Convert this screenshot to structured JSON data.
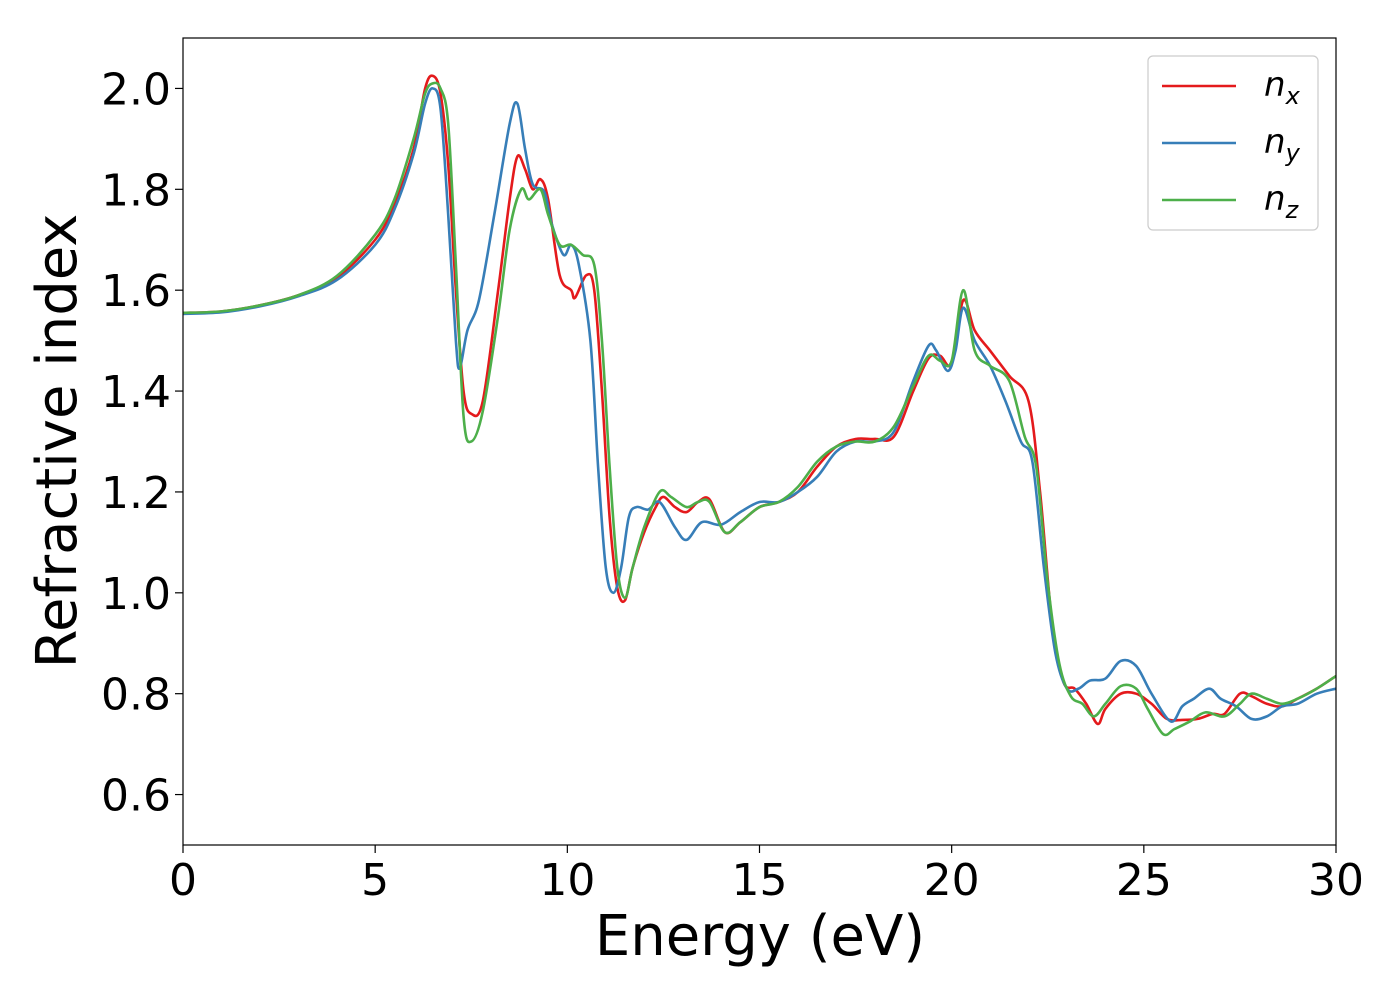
{
  "chart_data": {
    "type": "line",
    "xlabel": "Energy (eV)",
    "ylabel": "Refractive index",
    "xlim": [
      0,
      30
    ],
    "ylim": [
      0.5,
      2.1
    ],
    "xticks": [
      0,
      5,
      10,
      15,
      20,
      25,
      30
    ],
    "yticks": [
      0.6,
      0.8,
      1.0,
      1.2,
      1.4,
      1.6,
      1.8,
      2.0
    ],
    "xtick_labels": [
      "0",
      "5",
      "10",
      "15",
      "20",
      "25",
      "30"
    ],
    "ytick_labels": [
      "0.6",
      "0.8",
      "1.0",
      "1.2",
      "1.4",
      "1.6",
      "1.8",
      "2.0"
    ],
    "grid": false,
    "legend_position": "top-right",
    "series": [
      {
        "name": "n_x",
        "label_base": "n",
        "label_sub": "x",
        "color": "#e41a1c",
        "points": [
          [
            0,
            1.555
          ],
          [
            1,
            1.558
          ],
          [
            2,
            1.57
          ],
          [
            3,
            1.59
          ],
          [
            4,
            1.625
          ],
          [
            5,
            1.7
          ],
          [
            5.5,
            1.77
          ],
          [
            6,
            1.88
          ],
          [
            6.3,
            2.0
          ],
          [
            6.5,
            2.025
          ],
          [
            6.7,
            1.99
          ],
          [
            6.9,
            1.85
          ],
          [
            7.1,
            1.6
          ],
          [
            7.3,
            1.4
          ],
          [
            7.5,
            1.355
          ],
          [
            7.8,
            1.38
          ],
          [
            8.2,
            1.6
          ],
          [
            8.5,
            1.78
          ],
          [
            8.7,
            1.865
          ],
          [
            8.9,
            1.84
          ],
          [
            9.1,
            1.8
          ],
          [
            9.3,
            1.82
          ],
          [
            9.5,
            1.78
          ],
          [
            9.8,
            1.63
          ],
          [
            10.1,
            1.6
          ],
          [
            10.2,
            1.585
          ],
          [
            10.5,
            1.63
          ],
          [
            10.7,
            1.6
          ],
          [
            10.9,
            1.4
          ],
          [
            11.1,
            1.15
          ],
          [
            11.3,
            1.01
          ],
          [
            11.5,
            0.985
          ],
          [
            11.7,
            1.05
          ],
          [
            12,
            1.12
          ],
          [
            12.3,
            1.17
          ],
          [
            12.5,
            1.19
          ],
          [
            12.8,
            1.17
          ],
          [
            13.1,
            1.16
          ],
          [
            13.4,
            1.18
          ],
          [
            13.7,
            1.185
          ],
          [
            14.1,
            1.12
          ],
          [
            14.5,
            1.14
          ],
          [
            15,
            1.17
          ],
          [
            15.5,
            1.18
          ],
          [
            16,
            1.2
          ],
          [
            16.5,
            1.25
          ],
          [
            17,
            1.29
          ],
          [
            17.5,
            1.305
          ],
          [
            18,
            1.305
          ],
          [
            18.5,
            1.31
          ],
          [
            19,
            1.4
          ],
          [
            19.4,
            1.465
          ],
          [
            19.7,
            1.47
          ],
          [
            20,
            1.455
          ],
          [
            20.3,
            1.58
          ],
          [
            20.6,
            1.52
          ],
          [
            21,
            1.48
          ],
          [
            21.5,
            1.43
          ],
          [
            22,
            1.38
          ],
          [
            22.3,
            1.2
          ],
          [
            22.6,
            0.95
          ],
          [
            22.9,
            0.825
          ],
          [
            23.2,
            0.81
          ],
          [
            23.5,
            0.78
          ],
          [
            23.8,
            0.74
          ],
          [
            24,
            0.77
          ],
          [
            24.4,
            0.8
          ],
          [
            24.8,
            0.8
          ],
          [
            25.2,
            0.78
          ],
          [
            25.6,
            0.75
          ],
          [
            26,
            0.748
          ],
          [
            26.4,
            0.75
          ],
          [
            26.8,
            0.76
          ],
          [
            27.1,
            0.76
          ],
          [
            27.5,
            0.8
          ],
          [
            27.8,
            0.795
          ],
          [
            28.2,
            0.78
          ],
          [
            28.6,
            0.775
          ],
          [
            29,
            0.79
          ],
          [
            29.5,
            0.81
          ],
          [
            30,
            0.835
          ]
        ]
      },
      {
        "name": "n_y",
        "label_base": "n",
        "label_sub": "y",
        "color": "#377eb8",
        "points": [
          [
            0,
            1.553
          ],
          [
            1,
            1.556
          ],
          [
            2,
            1.568
          ],
          [
            3,
            1.588
          ],
          [
            4,
            1.62
          ],
          [
            5,
            1.69
          ],
          [
            5.5,
            1.76
          ],
          [
            6,
            1.87
          ],
          [
            6.3,
            1.97
          ],
          [
            6.5,
            2.0
          ],
          [
            6.7,
            1.96
          ],
          [
            6.9,
            1.75
          ],
          [
            7.1,
            1.5
          ],
          [
            7.2,
            1.445
          ],
          [
            7.4,
            1.52
          ],
          [
            7.7,
            1.58
          ],
          [
            8.1,
            1.75
          ],
          [
            8.5,
            1.93
          ],
          [
            8.7,
            1.97
          ],
          [
            8.9,
            1.88
          ],
          [
            9.1,
            1.81
          ],
          [
            9.4,
            1.795
          ],
          [
            9.6,
            1.73
          ],
          [
            9.9,
            1.67
          ],
          [
            10.1,
            1.69
          ],
          [
            10.3,
            1.65
          ],
          [
            10.6,
            1.5
          ],
          [
            10.8,
            1.25
          ],
          [
            11,
            1.05
          ],
          [
            11.2,
            1.0
          ],
          [
            11.4,
            1.05
          ],
          [
            11.6,
            1.15
          ],
          [
            11.8,
            1.17
          ],
          [
            12.1,
            1.165
          ],
          [
            12.4,
            1.18
          ],
          [
            12.8,
            1.13
          ],
          [
            13.1,
            1.105
          ],
          [
            13.5,
            1.14
          ],
          [
            14,
            1.135
          ],
          [
            14.5,
            1.16
          ],
          [
            15,
            1.18
          ],
          [
            15.5,
            1.18
          ],
          [
            16,
            1.2
          ],
          [
            16.5,
            1.23
          ],
          [
            17,
            1.28
          ],
          [
            17.5,
            1.3
          ],
          [
            18,
            1.3
          ],
          [
            18.5,
            1.32
          ],
          [
            19,
            1.42
          ],
          [
            19.4,
            1.49
          ],
          [
            19.6,
            1.48
          ],
          [
            19.9,
            1.44
          ],
          [
            20.1,
            1.48
          ],
          [
            20.3,
            1.565
          ],
          [
            20.6,
            1.5
          ],
          [
            21,
            1.45
          ],
          [
            21.4,
            1.38
          ],
          [
            21.8,
            1.3
          ],
          [
            22.1,
            1.26
          ],
          [
            22.4,
            1.05
          ],
          [
            22.7,
            0.88
          ],
          [
            23,
            0.81
          ],
          [
            23.3,
            0.81
          ],
          [
            23.6,
            0.826
          ],
          [
            24,
            0.83
          ],
          [
            24.4,
            0.865
          ],
          [
            24.8,
            0.855
          ],
          [
            25.2,
            0.8
          ],
          [
            25.7,
            0.745
          ],
          [
            26,
            0.775
          ],
          [
            26.3,
            0.79
          ],
          [
            26.7,
            0.81
          ],
          [
            27,
            0.79
          ],
          [
            27.4,
            0.775
          ],
          [
            27.8,
            0.75
          ],
          [
            28.2,
            0.755
          ],
          [
            28.6,
            0.775
          ],
          [
            29,
            0.78
          ],
          [
            29.5,
            0.8
          ],
          [
            30,
            0.81
          ]
        ]
      },
      {
        "name": "n_z",
        "label_base": "n",
        "label_sub": "z",
        "color": "#4daf4a",
        "points": [
          [
            0,
            1.555
          ],
          [
            1,
            1.558
          ],
          [
            2,
            1.57
          ],
          [
            3,
            1.59
          ],
          [
            4,
            1.628
          ],
          [
            5,
            1.71
          ],
          [
            5.5,
            1.78
          ],
          [
            6,
            1.9
          ],
          [
            6.3,
            1.99
          ],
          [
            6.5,
            2.01
          ],
          [
            6.7,
            2.0
          ],
          [
            6.9,
            1.93
          ],
          [
            7.1,
            1.65
          ],
          [
            7.3,
            1.35
          ],
          [
            7.5,
            1.3
          ],
          [
            7.8,
            1.36
          ],
          [
            8.2,
            1.55
          ],
          [
            8.5,
            1.72
          ],
          [
            8.8,
            1.8
          ],
          [
            9,
            1.78
          ],
          [
            9.3,
            1.8
          ],
          [
            9.5,
            1.75
          ],
          [
            9.8,
            1.69
          ],
          [
            10.1,
            1.69
          ],
          [
            10.4,
            1.67
          ],
          [
            10.7,
            1.65
          ],
          [
            10.9,
            1.5
          ],
          [
            11.1,
            1.25
          ],
          [
            11.3,
            1.05
          ],
          [
            11.5,
            0.99
          ],
          [
            11.7,
            1.05
          ],
          [
            12,
            1.13
          ],
          [
            12.4,
            1.2
          ],
          [
            12.7,
            1.19
          ],
          [
            13.1,
            1.17
          ],
          [
            13.4,
            1.18
          ],
          [
            13.7,
            1.18
          ],
          [
            14.1,
            1.12
          ],
          [
            14.5,
            1.14
          ],
          [
            15,
            1.17
          ],
          [
            15.5,
            1.18
          ],
          [
            16,
            1.21
          ],
          [
            16.5,
            1.26
          ],
          [
            17,
            1.29
          ],
          [
            17.5,
            1.3
          ],
          [
            18,
            1.3
          ],
          [
            18.5,
            1.33
          ],
          [
            19,
            1.41
          ],
          [
            19.4,
            1.47
          ],
          [
            19.7,
            1.46
          ],
          [
            20,
            1.46
          ],
          [
            20.3,
            1.6
          ],
          [
            20.6,
            1.48
          ],
          [
            21,
            1.45
          ],
          [
            21.5,
            1.42
          ],
          [
            21.9,
            1.31
          ],
          [
            22.2,
            1.25
          ],
          [
            22.5,
            1.02
          ],
          [
            22.8,
            0.86
          ],
          [
            23.1,
            0.795
          ],
          [
            23.4,
            0.78
          ],
          [
            23.7,
            0.755
          ],
          [
            24,
            0.78
          ],
          [
            24.4,
            0.815
          ],
          [
            24.8,
            0.81
          ],
          [
            25.1,
            0.77
          ],
          [
            25.5,
            0.72
          ],
          [
            25.8,
            0.73
          ],
          [
            26.2,
            0.745
          ],
          [
            26.6,
            0.763
          ],
          [
            27.1,
            0.755
          ],
          [
            27.5,
            0.78
          ],
          [
            27.8,
            0.8
          ],
          [
            28.2,
            0.79
          ],
          [
            28.6,
            0.78
          ],
          [
            29,
            0.79
          ],
          [
            29.5,
            0.81
          ],
          [
            30,
            0.835
          ]
        ]
      }
    ]
  }
}
